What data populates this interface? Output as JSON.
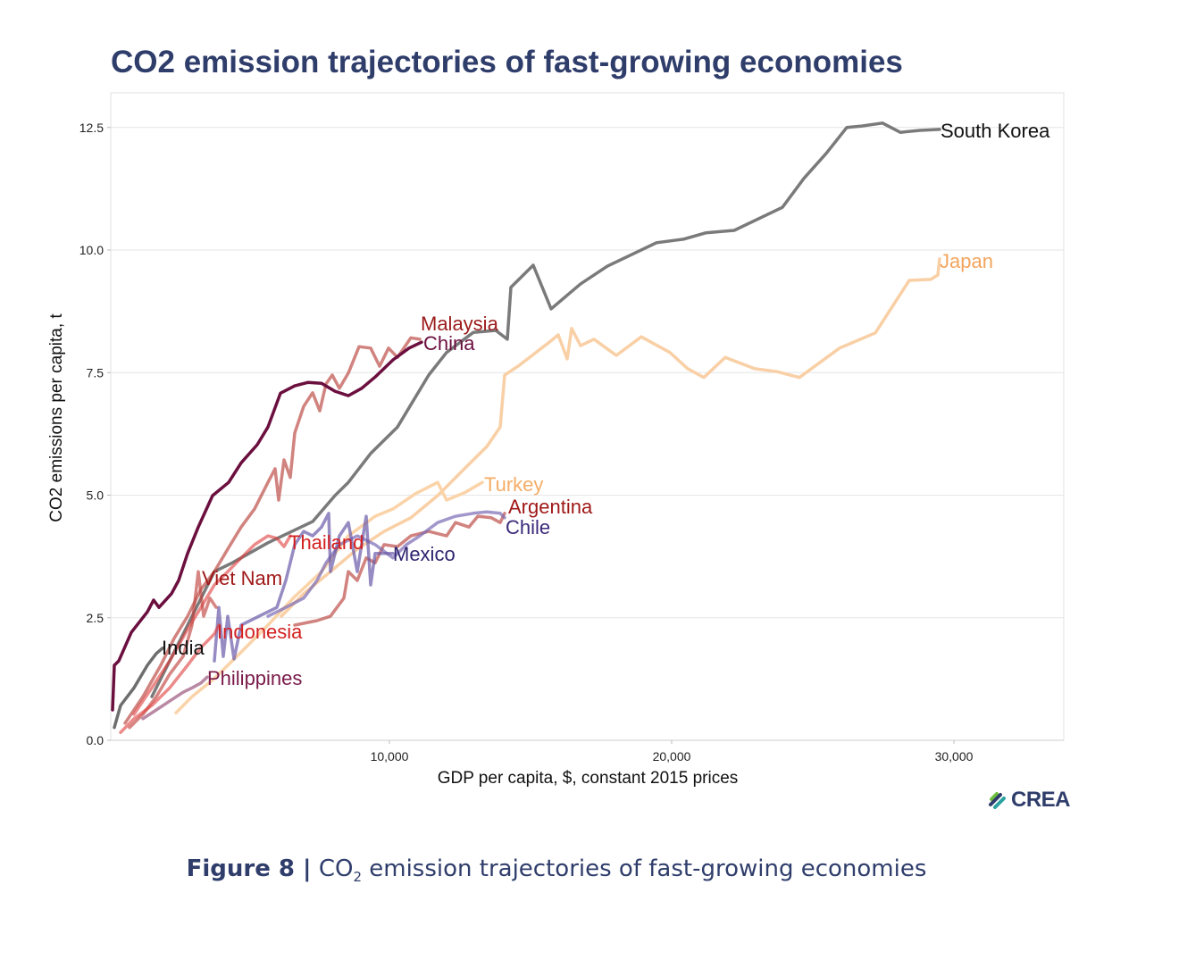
{
  "chart_data": {
    "type": "line",
    "title": "CO2 emission trajectories of fast-growing economies",
    "xlabel": "GDP per capita, $, constant 2015 prices",
    "ylabel": "CO2 emissions per capita, t",
    "xlim": [
      0,
      33800
    ],
    "ylim": [
      0,
      13.2
    ],
    "xticks": [
      10000,
      20000,
      30000
    ],
    "xtick_labels": [
      "10,000",
      "20,000",
      "30,000"
    ],
    "yticks": [
      0,
      2.5,
      5,
      7.5,
      10,
      12.5
    ],
    "ytick_labels": [
      "0.0",
      "2.5",
      "5.0",
      "7.5",
      "10.0",
      "12.5"
    ],
    "grid": true,
    "series": [
      {
        "name": "South Korea",
        "color": "#7a7a7a",
        "label_color": "#111111",
        "opacity": 1,
        "x": [
          1582,
          2215,
          3006,
          3797,
          4430,
          5696,
          7278,
          8070,
          8544,
          9335,
          10285,
          11392,
          12025,
          12975,
          13766,
          14177,
          14304,
          15095,
          15728,
          16772,
          17722,
          19462,
          20411,
          21203,
          22215,
          23924,
          24684,
          25475,
          26203,
          26741,
          27468,
          28101,
          28797,
          29494
        ],
        "y": [
          0.89,
          1.62,
          2.53,
          3.44,
          3.62,
          4.03,
          4.46,
          4.99,
          5.26,
          5.85,
          6.39,
          7.45,
          7.91,
          8.32,
          8.36,
          8.18,
          9.24,
          9.69,
          8.8,
          9.31,
          9.67,
          10.15,
          10.22,
          10.35,
          10.4,
          10.87,
          11.46,
          11.97,
          12.5,
          12.53,
          12.59,
          12.4,
          12.44,
          12.46
        ]
      },
      {
        "name": "Japan",
        "color": "#f9cfa5",
        "label_color": "#f2a55c",
        "opacity": 1,
        "x": [
          6171,
          6962,
          7911,
          8861,
          9810,
          10759,
          11709,
          12658,
          13449,
          13924,
          14082,
          14557,
          15190,
          15665,
          15981,
          16297,
          16456,
          16772,
          17247,
          18038,
          18924,
          19937,
          20570,
          21139,
          21899,
          22943,
          23734,
          24525,
          25949,
          27215,
          28418,
          29177,
          29430,
          29494
        ],
        "y": [
          2.53,
          2.99,
          3.44,
          3.9,
          4.26,
          4.54,
          4.99,
          5.54,
          5.99,
          6.39,
          7.45,
          7.63,
          7.91,
          8.12,
          8.27,
          7.78,
          8.4,
          8.05,
          8.18,
          7.85,
          8.23,
          7.91,
          7.58,
          7.4,
          7.81,
          7.58,
          7.52,
          7.4,
          8.0,
          8.31,
          9.38,
          9.4,
          9.49,
          9.82
        ]
      },
      {
        "name": "Turkey",
        "color": "#fbd3a8",
        "label_color": "#f5ad66",
        "opacity": 1,
        "x": [
          2437,
          3006,
          3797,
          4747,
          5696,
          6646,
          7595,
          8544,
          9494,
          10127,
          10918,
          11709,
          12025,
          12658,
          13291
        ],
        "y": [
          0.56,
          0.89,
          1.26,
          1.8,
          2.35,
          2.93,
          3.44,
          4.17,
          4.57,
          4.72,
          5.03,
          5.26,
          4.9,
          5.05,
          5.26
        ]
      },
      {
        "name": "Malaysia",
        "color": "#b8403b",
        "label_color": "#9b1b1b",
        "opacity": 0.65,
        "x": [
          633,
          1266,
          1899,
          2373,
          2848,
          3323,
          3797,
          4272,
          4747,
          5222,
          5696,
          5949,
          6076,
          6266,
          6487,
          6646,
          6962,
          7278,
          7532,
          7753,
          7975,
          8228,
          8544,
          8924,
          9335,
          9652,
          9968,
          10285,
          10759,
          11076
        ],
        "y": [
          0.35,
          0.89,
          1.53,
          2.08,
          2.53,
          3.08,
          3.44,
          3.9,
          4.35,
          4.72,
          5.26,
          5.54,
          4.9,
          5.72,
          5.36,
          6.27,
          6.81,
          7.09,
          6.72,
          7.27,
          7.45,
          7.18,
          7.49,
          8.03,
          8.0,
          7.63,
          8.0,
          7.81,
          8.21,
          8.18
        ]
      },
      {
        "name": "China",
        "color": "#6b0f3f",
        "label_color": "#6b0f3f",
        "opacity": 1,
        "x": [
          190,
          253,
          411,
          854,
          1424,
          1646,
          1835,
          2278,
          2532,
          2848,
          3228,
          3734,
          4304,
          4747,
          5316,
          5696,
          6139,
          6646,
          7120,
          7595,
          8070,
          8544,
          9019,
          9494,
          10127,
          10696,
          11139
        ],
        "y": [
          0.62,
          1.53,
          1.62,
          2.2,
          2.62,
          2.86,
          2.71,
          2.99,
          3.26,
          3.81,
          4.35,
          4.99,
          5.26,
          5.66,
          6.03,
          6.39,
          7.08,
          7.23,
          7.3,
          7.28,
          7.12,
          7.03,
          7.18,
          7.41,
          7.76,
          8.0,
          8.12
        ]
      },
      {
        "name": "Argentina",
        "color": "#b8403b",
        "label_color": "#a01818",
        "opacity": 0.65,
        "x": [
          6646,
          7437,
          7911,
          8386,
          8544,
          8861,
          9177,
          9494,
          9810,
          10285,
          10759,
          11392,
          12025,
          12342,
          12816,
          13133,
          13608,
          13924,
          14082
        ],
        "y": [
          2.35,
          2.44,
          2.53,
          2.9,
          3.44,
          3.26,
          3.72,
          3.62,
          3.99,
          3.95,
          4.17,
          4.26,
          4.17,
          4.44,
          4.35,
          4.57,
          4.54,
          4.44,
          4.63
        ]
      },
      {
        "name": "Chile",
        "color": "#7b6bb5",
        "label_color": "#3b2a7a",
        "opacity": 0.7,
        "x": [
          5696,
          6329,
          6962,
          7437,
          7753,
          8228,
          8861,
          9494,
          10127,
          10601,
          11076,
          11709,
          12342,
          12975,
          13449,
          13924,
          14082
        ],
        "y": [
          2.53,
          2.71,
          2.9,
          3.26,
          3.62,
          3.99,
          4.17,
          3.99,
          3.72,
          3.99,
          4.17,
          4.44,
          4.57,
          4.63,
          4.66,
          4.63,
          4.54
        ]
      },
      {
        "name": "Mexico",
        "color": "#6a5aa8",
        "label_color": "#2e2470",
        "opacity": 0.7,
        "x": [
          3797,
          3956,
          4114,
          4272,
          4494,
          4747,
          5380,
          6013,
          6329,
          6646,
          6962,
          7278,
          7595,
          7848,
          7911,
          8228,
          8544,
          8861,
          9177,
          9335,
          9494,
          10127
        ],
        "y": [
          1.62,
          2.71,
          1.71,
          2.53,
          1.66,
          2.35,
          2.53,
          2.71,
          3.26,
          3.99,
          4.26,
          4.17,
          4.35,
          4.63,
          3.44,
          4.17,
          4.44,
          3.44,
          4.57,
          3.17,
          3.81,
          3.81
        ]
      },
      {
        "name": "Thailand",
        "color": "#e03c3c",
        "label_color": "#d42020",
        "opacity": 0.6,
        "x": [
          949,
          1582,
          2215,
          2848,
          3323,
          3797,
          4272,
          4747,
          5222,
          5696,
          6013,
          6266,
          6487
        ],
        "y": [
          0.53,
          1.07,
          1.62,
          2.26,
          2.71,
          3.17,
          3.44,
          3.72,
          3.99,
          4.17,
          4.12,
          3.95,
          4.17
        ]
      },
      {
        "name": "Viet Nam",
        "color": "#c0443f",
        "label_color": "#a01818",
        "opacity": 0.65,
        "x": [
          791,
          1266,
          1741,
          2215,
          2690,
          3006,
          3228,
          3418,
          3639,
          3861
        ],
        "y": [
          0.26,
          0.53,
          0.89,
          1.35,
          1.71,
          2.35,
          3.44,
          2.53,
          2.9,
          2.71
        ]
      },
      {
        "name": "Indonesia",
        "color": "#e03c3c",
        "label_color": "#d42020",
        "opacity": 0.6,
        "x": [
          475,
          949,
          1582,
          2215,
          2848,
          3323,
          3797,
          3956
        ],
        "y": [
          0.16,
          0.44,
          0.71,
          1.07,
          1.53,
          1.89,
          2.17,
          2.35
        ]
      },
      {
        "name": "India",
        "color": "#6e6e6e",
        "label_color": "#111111",
        "opacity": 1,
        "x": [
          253,
          475,
          949,
          1424,
          1741,
          1962
        ],
        "y": [
          0.26,
          0.71,
          1.07,
          1.53,
          1.77,
          1.88
        ]
      },
      {
        "name": "Philippines",
        "color": "#8b3a68",
        "label_color": "#7a1a4a",
        "opacity": 0.6,
        "x": [
          1266,
          1741,
          2215,
          2690,
          3006,
          3323,
          3544
        ],
        "y": [
          0.44,
          0.62,
          0.8,
          0.98,
          1.07,
          1.17,
          1.29
        ]
      }
    ]
  },
  "logo": {
    "text": "CREA"
  },
  "caption": {
    "figure": "Figure 8 |",
    "pre": "CO",
    "sub": "2",
    "post": " emission trajectories of fast-growing economies"
  }
}
